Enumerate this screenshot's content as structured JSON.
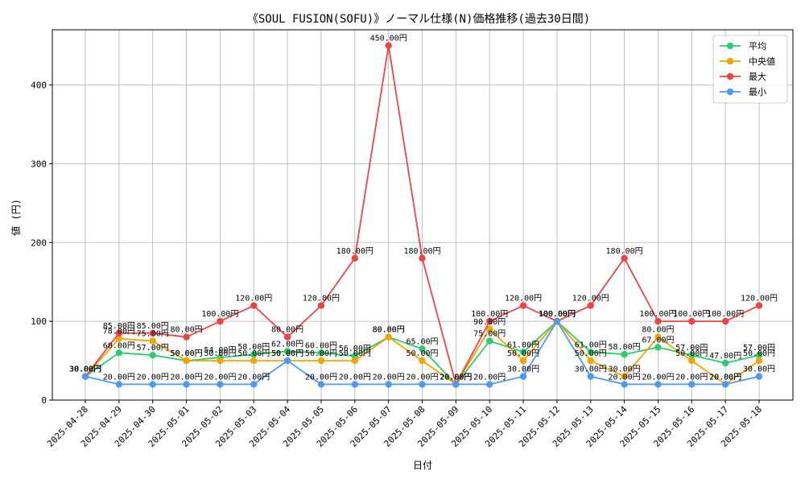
{
  "chart_data": {
    "type": "line",
    "title": "《SOUL FUSION(SOFU)》ノーマル仕様(N)価格推移(過去30日間)",
    "xlabel": "日付",
    "ylabel": "値 (円)",
    "ylim": [
      0,
      470
    ],
    "yticks": [
      0,
      100,
      200,
      300,
      400
    ],
    "grid": true,
    "legend_position": "top-right",
    "value_suffix": "円",
    "categories": [
      "2025-04-28",
      "2025-04-29",
      "2025-04-30",
      "2025-05-01",
      "2025-05-02",
      "2025-05-03",
      "2025-05-04",
      "2025-05-05",
      "2025-05-06",
      "2025-05-07",
      "2025-05-08",
      "2025-05-09",
      "2025-05-10",
      "2025-05-11",
      "2025-05-12",
      "2025-05-13",
      "2025-05-14",
      "2025-05-15",
      "2025-05-16",
      "2025-05-17",
      "2025-05-18"
    ],
    "series": [
      {
        "name": "平均",
        "color": "#2ecc71",
        "values": [
          30,
          60,
          57,
          50,
          54,
          58,
          62,
          60,
          56,
          80,
          65,
          20,
          75,
          61,
          100,
          61,
          58,
          67,
          57,
          47,
          57
        ]
      },
      {
        "name": "中央値",
        "color": "#f5a300",
        "values": [
          30,
          78,
          75,
          50,
          50,
          50,
          50,
          50,
          50,
          80,
          50,
          20,
          90,
          50,
          100,
          50,
          30,
          80,
          50,
          20,
          50
        ]
      },
      {
        "name": "最大",
        "color": "#ef4444",
        "values": [
          30,
          85,
          85,
          80,
          100,
          120,
          80,
          120,
          180,
          450,
          180,
          20,
          100,
          120,
          100,
          120,
          180,
          100,
          100,
          100,
          120
        ]
      },
      {
        "name": "最小",
        "color": "#4e9af1",
        "values": [
          30,
          20,
          20,
          20,
          20,
          20,
          50,
          20,
          20,
          20,
          20,
          20,
          20,
          30,
          100,
          30,
          20,
          20,
          20,
          20,
          30
        ]
      }
    ]
  }
}
